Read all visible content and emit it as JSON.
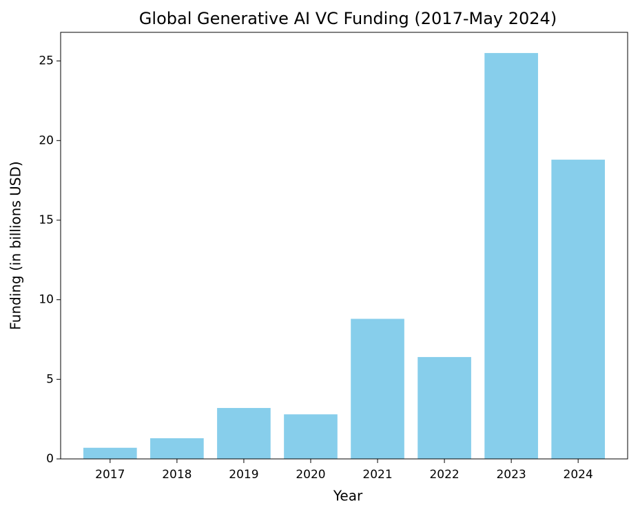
{
  "chart_data": {
    "type": "bar",
    "title": "Global Generative AI VC Funding (2017-May 2024)",
    "x_label": "Year",
    "y_label": "Funding (in billions USD)",
    "categories": [
      "2017",
      "2018",
      "2019",
      "2020",
      "2021",
      "2022",
      "2023",
      "2024"
    ],
    "values": [
      0.7,
      1.3,
      3.2,
      2.8,
      8.8,
      6.4,
      25.5,
      18.8
    ],
    "color": "#87ceeb",
    "ylim": [
      0,
      26.8
    ],
    "yticks": [
      0,
      5,
      10,
      15,
      20,
      25
    ],
    "grid": false
  }
}
